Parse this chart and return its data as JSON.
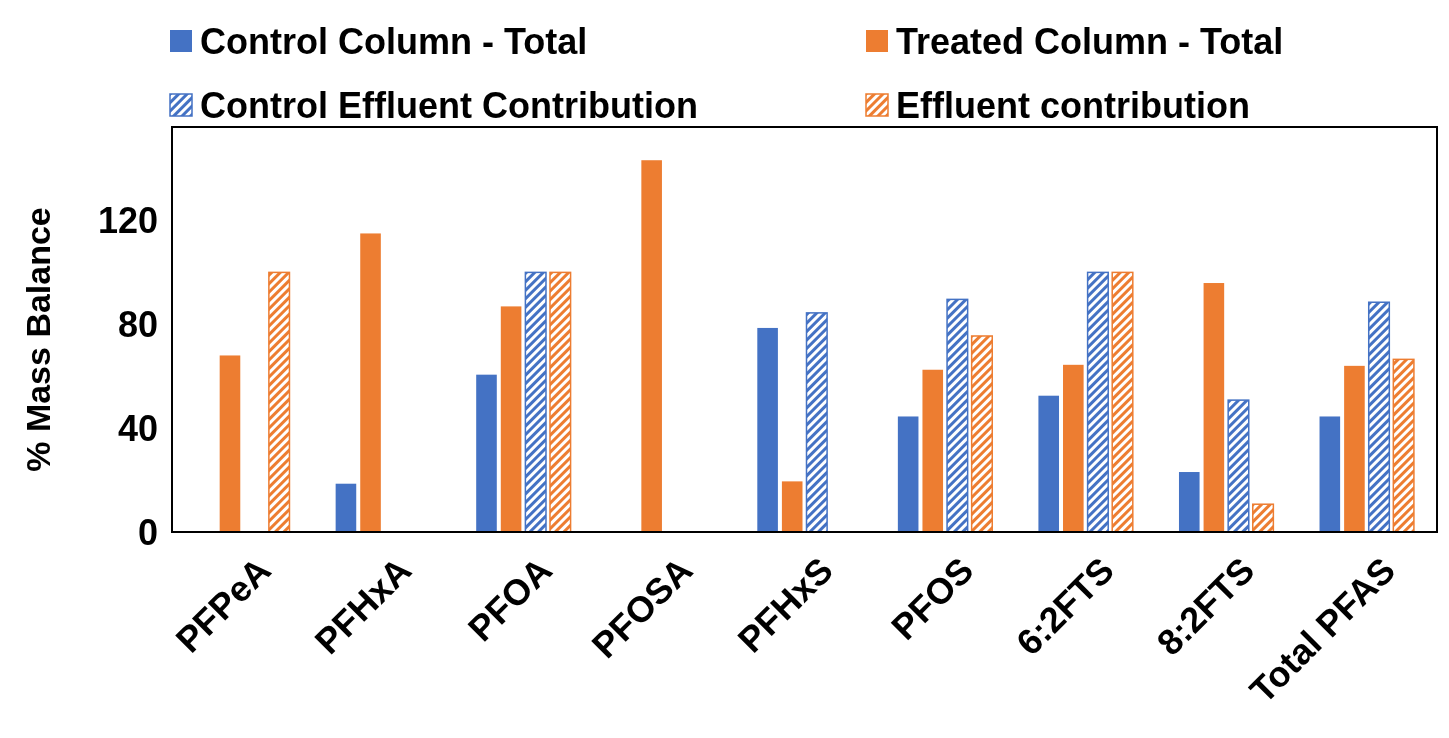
{
  "chart_data": {
    "type": "bar",
    "ylabel": "% Mass Balance",
    "categories": [
      "PFPeA",
      "PFHxA",
      "PFOA",
      "PFOSA",
      "PFHxS",
      "PFOS",
      "6:2FTS",
      "8:2FTS",
      "Total PFAS"
    ],
    "series": [
      {
        "name": "Control Column - Total",
        "color": "#4472c4",
        "values": [
          null,
          18.6,
          60.6,
          null,
          78.6,
          44.5,
          52.5,
          23.1,
          44.5
        ]
      },
      {
        "name": "Treated Column - Total",
        "color": "#ed7d31",
        "values": [
          68,
          115,
          86.9,
          143.2,
          19.5,
          62.5,
          64.4,
          95.9,
          64
        ]
      },
      {
        "name": "Control Effluent Contribution",
        "color": "#4472c4",
        "values": [
          null,
          null,
          100,
          null,
          84.4,
          89.6,
          100,
          50.8,
          88.5
        ]
      },
      {
        "name": "Effluent contribution",
        "color": "#ed7d31",
        "values": [
          100,
          null,
          100,
          null,
          null,
          75.5,
          100,
          10.7,
          66.5
        ]
      }
    ],
    "ylim": [
      0,
      156
    ],
    "yticks": [
      0,
      40,
      80,
      120
    ],
    "legend": "top",
    "grid": false
  }
}
